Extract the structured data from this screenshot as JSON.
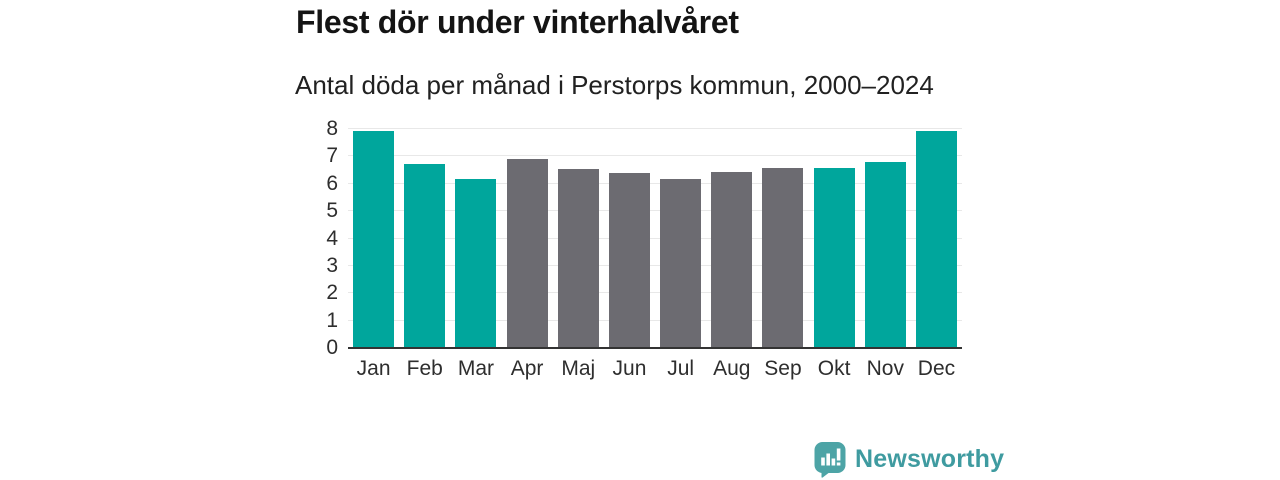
{
  "figure": {
    "title": "Flest dör under vinterhalvåret",
    "subtitle": "Antal döda per månad i Perstorps kommun, 2000–2024"
  },
  "branding": {
    "name": "Newsworthy",
    "logo_icon": "speech-bubble-bar-chart-icon",
    "text_color": "#3f9ba0",
    "icon_color": "#4da4a6",
    "icon_glyph_color": "#ffffff"
  },
  "colors": {
    "bar_highlight": "#00a69c",
    "bar_muted": "#6c6b71",
    "gridline": "#e8e8e8",
    "axis_line": "#333333",
    "title_text": "#141414",
    "label_text": "#2e2e2e",
    "background": "#ffffff"
  },
  "chart_data": {
    "type": "bar",
    "title": "Flest dör under vinterhalvåret",
    "subtitle": "Antal döda per månad i Perstorps kommun, 2000–2024",
    "xlabel": "",
    "ylabel": "",
    "categories": [
      "Jan",
      "Feb",
      "Mar",
      "Apr",
      "Maj",
      "Jun",
      "Jul",
      "Aug",
      "Sep",
      "Okt",
      "Nov",
      "Dec"
    ],
    "values": [
      7.9,
      6.7,
      6.15,
      6.85,
      6.5,
      6.35,
      6.15,
      6.4,
      6.55,
      6.55,
      6.75,
      7.9
    ],
    "highlighted_categories": [
      "Jan",
      "Feb",
      "Mar",
      "Okt",
      "Nov",
      "Dec"
    ],
    "bar_colors": [
      "#00a69c",
      "#00a69c",
      "#00a69c",
      "#6c6b71",
      "#6c6b71",
      "#6c6b71",
      "#6c6b71",
      "#6c6b71",
      "#6c6b71",
      "#00a69c",
      "#00a69c",
      "#00a69c"
    ],
    "ylim": [
      0,
      8
    ],
    "yticks": [
      0,
      1,
      2,
      3,
      4,
      5,
      6,
      7,
      8
    ],
    "grid": true,
    "legend_position": "none"
  }
}
